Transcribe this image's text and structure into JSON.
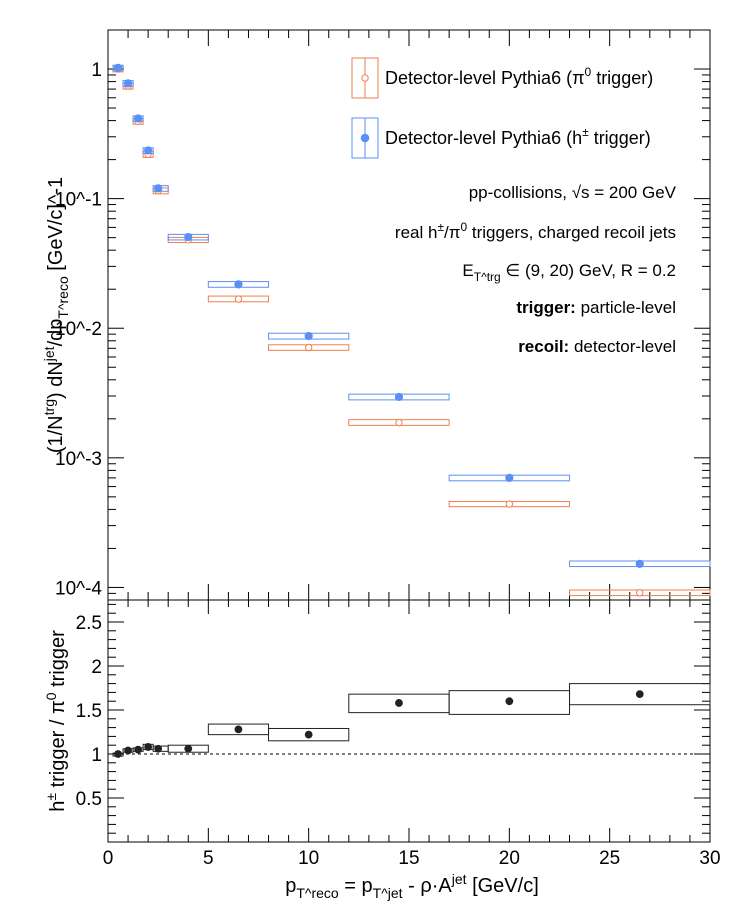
{
  "chart_data": [
    {
      "type": "scatter",
      "panel": "top",
      "ylabel": "(1/N^trg) dN^jet/dp_T^reco [GeV/c]^-1",
      "yscale": "log",
      "ylim": [
        8e-05,
        2.0
      ],
      "xlim": [
        0,
        30
      ],
      "y_tick_labels": [
        "10^-4",
        "10^-3",
        "10^-2",
        "10^-1",
        "1"
      ],
      "legend": {
        "position": "top-right",
        "entries": [
          {
            "label": "Detector-level Pythia6 (π^0 trigger)",
            "color": "#ef7f4f",
            "marker": "open-circle"
          },
          {
            "label": "Detector-level Pythia6 (h^± trigger)",
            "color": "#5b8ff5",
            "marker": "filled-circle"
          }
        ]
      },
      "annotations": [
        {
          "text": "pp-collisions, √s = 200 GeV"
        },
        {
          "text": "real h^±/π^0 triggers, charged recoil jets"
        },
        {
          "text": "E_T^trg ∈ (9, 20) GeV, R = 0.2"
        },
        {
          "bold": "trigger:",
          "text": " particle-level"
        },
        {
          "bold": "recoil:",
          "text": " detector-level"
        }
      ],
      "series": [
        {
          "name": "Detector-level Pythia6 (π^0 trigger)",
          "color": "#ef7f4f",
          "marker": "open",
          "points": [
            {
              "x": 0.5,
              "y": 1.0,
              "xlo": 0.25,
              "xhi": 0.75,
              "syslo": 0.95,
              "syshi": 1.05
            },
            {
              "x": 1.0,
              "y": 0.74,
              "xlo": 0.75,
              "xhi": 1.25,
              "syslo": 0.7,
              "syshi": 0.78
            },
            {
              "x": 1.5,
              "y": 0.395,
              "xlo": 1.25,
              "xhi": 1.75,
              "syslo": 0.375,
              "syshi": 0.415
            },
            {
              "x": 2.0,
              "y": 0.22,
              "xlo": 1.75,
              "xhi": 2.25,
              "syslo": 0.208,
              "syshi": 0.232
            },
            {
              "x": 2.5,
              "y": 0.115,
              "xlo": 2.25,
              "xhi": 3.0,
              "syslo": 0.109,
              "syshi": 0.121
            },
            {
              "x": 4.0,
              "y": 0.048,
              "xlo": 3.0,
              "xhi": 5.0,
              "syslo": 0.0458,
              "syshi": 0.0502
            },
            {
              "x": 6.5,
              "y": 0.0168,
              "xlo": 5.0,
              "xhi": 8.0,
              "syslo": 0.016,
              "syshi": 0.0177
            },
            {
              "x": 10.0,
              "y": 0.0071,
              "xlo": 8.0,
              "xhi": 12.0,
              "syslo": 0.00675,
              "syshi": 0.00745
            },
            {
              "x": 14.5,
              "y": 0.00187,
              "xlo": 12.0,
              "xhi": 17.0,
              "syslo": 0.00178,
              "syshi": 0.00197
            },
            {
              "x": 20.0,
              "y": 0.00044,
              "xlo": 17.0,
              "xhi": 23.0,
              "syslo": 0.00042,
              "syshi": 0.00046
            },
            {
              "x": 26.5,
              "y": 9.1e-05,
              "xlo": 23.0,
              "xhi": 30.0,
              "syslo": 8.65e-05,
              "syshi": 9.55e-05
            }
          ]
        },
        {
          "name": "Detector-level Pythia6 (h^± trigger)",
          "color": "#5b8ff5",
          "marker": "filled",
          "points": [
            {
              "x": 0.5,
              "y": 1.02,
              "xlo": 0.25,
              "xhi": 0.75,
              "syslo": 0.97,
              "syshi": 1.07
            },
            {
              "x": 1.0,
              "y": 0.775,
              "xlo": 0.75,
              "xhi": 1.25,
              "syslo": 0.735,
              "syshi": 0.815
            },
            {
              "x": 1.5,
              "y": 0.415,
              "xlo": 1.25,
              "xhi": 1.75,
              "syslo": 0.395,
              "syshi": 0.435
            },
            {
              "x": 2.0,
              "y": 0.235,
              "xlo": 1.75,
              "xhi": 2.25,
              "syslo": 0.223,
              "syshi": 0.247
            },
            {
              "x": 2.5,
              "y": 0.12,
              "xlo": 2.25,
              "xhi": 3.0,
              "syslo": 0.114,
              "syshi": 0.126
            },
            {
              "x": 4.0,
              "y": 0.0505,
              "xlo": 3.0,
              "xhi": 5.0,
              "syslo": 0.048,
              "syshi": 0.053
            },
            {
              "x": 6.5,
              "y": 0.0218,
              "xlo": 5.0,
              "xhi": 8.0,
              "syslo": 0.0207,
              "syshi": 0.0229
            },
            {
              "x": 10.0,
              "y": 0.0087,
              "xlo": 8.0,
              "xhi": 12.0,
              "syslo": 0.00825,
              "syshi": 0.00915
            },
            {
              "x": 14.5,
              "y": 0.00295,
              "xlo": 12.0,
              "xhi": 17.0,
              "syslo": 0.0028,
              "syshi": 0.0031
            },
            {
              "x": 20.0,
              "y": 0.0007,
              "xlo": 17.0,
              "xhi": 23.0,
              "syslo": 0.000665,
              "syshi": 0.000735
            },
            {
              "x": 26.5,
              "y": 0.000152,
              "xlo": 23.0,
              "xhi": 30.0,
              "syslo": 0.000145,
              "syshi": 0.00016
            }
          ]
        }
      ]
    },
    {
      "type": "scatter",
      "panel": "bottom",
      "xlabel": "p_T^reco = p_T^jet - ρ·A^jet [GeV/c]",
      "ylabel": "h^± trigger / π^0 trigger",
      "xlim": [
        0,
        30
      ],
      "ylim": [
        0,
        2.75
      ],
      "x_ticks": [
        0,
        5,
        10,
        15,
        20,
        25,
        30
      ],
      "y_ticks": [
        0.5,
        1,
        1.5,
        2,
        2.5
      ],
      "y_tick_labels": [
        "0.5",
        "1",
        "1.5",
        "2",
        "2.5"
      ],
      "reference_line": 1,
      "series": [
        {
          "color": "#222222",
          "points": [
            {
              "x": 0.5,
              "y": 1.0,
              "xlo": 0.25,
              "xhi": 0.75,
              "syslo": 0.99,
              "syshi": 1.01
            },
            {
              "x": 1.0,
              "y": 1.04,
              "xlo": 0.75,
              "xhi": 1.25,
              "syslo": 1.02,
              "syshi": 1.06
            },
            {
              "x": 1.5,
              "y": 1.05,
              "xlo": 1.25,
              "xhi": 1.75,
              "syslo": 1.03,
              "syshi": 1.07
            },
            {
              "x": 2.0,
              "y": 1.08,
              "xlo": 1.75,
              "xhi": 2.25,
              "syslo": 1.05,
              "syshi": 1.11
            },
            {
              "x": 2.5,
              "y": 1.06,
              "xlo": 2.25,
              "xhi": 3.0,
              "syslo": 1.03,
              "syshi": 1.09
            },
            {
              "x": 4.0,
              "y": 1.06,
              "xlo": 3.0,
              "xhi": 5.0,
              "syslo": 1.02,
              "syshi": 1.1
            },
            {
              "x": 6.5,
              "y": 1.28,
              "xlo": 5.0,
              "xhi": 8.0,
              "syslo": 1.22,
              "syshi": 1.34
            },
            {
              "x": 10.0,
              "y": 1.22,
              "xlo": 8.0,
              "xhi": 12.0,
              "syslo": 1.15,
              "syshi": 1.29
            },
            {
              "x": 14.5,
              "y": 1.58,
              "xlo": 12.0,
              "xhi": 17.0,
              "syslo": 1.47,
              "syshi": 1.68
            },
            {
              "x": 20.0,
              "y": 1.6,
              "xlo": 17.0,
              "xhi": 23.0,
              "syslo": 1.45,
              "syshi": 1.72
            },
            {
              "x": 26.5,
              "y": 1.68,
              "xlo": 23.0,
              "xhi": 30.0,
              "syslo": 1.56,
              "syshi": 1.8
            }
          ]
        }
      ]
    }
  ]
}
